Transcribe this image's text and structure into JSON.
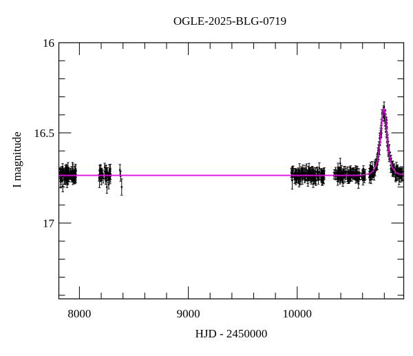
{
  "page": {
    "background_color": "#ffffff"
  },
  "chart_data": {
    "type": "scatter",
    "title": "OGLE-2025-BLG-0719",
    "xlabel": "HJD - 2450000",
    "ylabel": "I magnitude",
    "xlim": [
      7811,
      10978
    ],
    "ylim": [
      16.0,
      17.42
    ],
    "y_axis_direction": "inverted-magnitude-axis-brighter-up",
    "x_ticks_major": [
      8000,
      9000,
      10000
    ],
    "x_tick_labels": [
      "8000",
      "9000",
      "10000"
    ],
    "x_tick_minor_step": 200,
    "y_ticks_major": [
      16,
      16.5,
      17
    ],
    "y_tick_labels": [
      "16",
      "16.5",
      "17"
    ],
    "y_tick_minor_step": 0.1,
    "grid": false,
    "legend": null,
    "colors": {
      "data_points": "#000000",
      "model_curve": "#ee00ee",
      "axes": "#111111",
      "text": "#000000",
      "background": "#ffffff"
    },
    "baseline_I_mag": 16.735,
    "peak_I_mag": 16.37,
    "peak_time_hjd_minus_2450000": 10795,
    "model": {
      "kind": "paczynski_point_lens_microlensing",
      "t0": 10795,
      "tE": 38,
      "u0": 0.92,
      "baseline_mag": 16.735
    },
    "data_seasons": [
      {
        "name": "season-1",
        "t_start": 7820,
        "t_end": 7968,
        "n_points": 85,
        "mean_mag": 16.735,
        "scatter_mag": 0.017,
        "mean_err_mag": 0.022
      },
      {
        "name": "season-2",
        "t_start": 8180,
        "t_end": 8285,
        "n_points": 42,
        "mean_mag": 16.735,
        "scatter_mag": 0.017,
        "mean_err_mag": 0.022
      },
      {
        "name": "season-3",
        "t_start": 9945,
        "t_end": 10250,
        "n_points": 130,
        "mean_mag": 16.735,
        "scatter_mag": 0.016,
        "mean_err_mag": 0.021
      },
      {
        "name": "season-4",
        "t_start": 10335,
        "t_end": 10630,
        "n_points": 110,
        "mean_mag": 16.735,
        "scatter_mag": 0.016,
        "mean_err_mag": 0.021
      },
      {
        "name": "event-season",
        "t_start": 10660,
        "t_end": 10970,
        "n_points": 150,
        "mean_mag": 16.735,
        "scatter_mag": 0.015,
        "mean_err_mag": 0.02
      }
    ],
    "isolated_points": [
      {
        "t": 8372,
        "mag": 16.705,
        "err": 0.03
      },
      {
        "t": 8378,
        "mag": 16.74,
        "err": 0.028
      },
      {
        "t": 8388,
        "mag": 16.8,
        "err": 0.045
      },
      {
        "t": 8252,
        "mag": 16.8,
        "err": 0.035
      }
    ]
  }
}
